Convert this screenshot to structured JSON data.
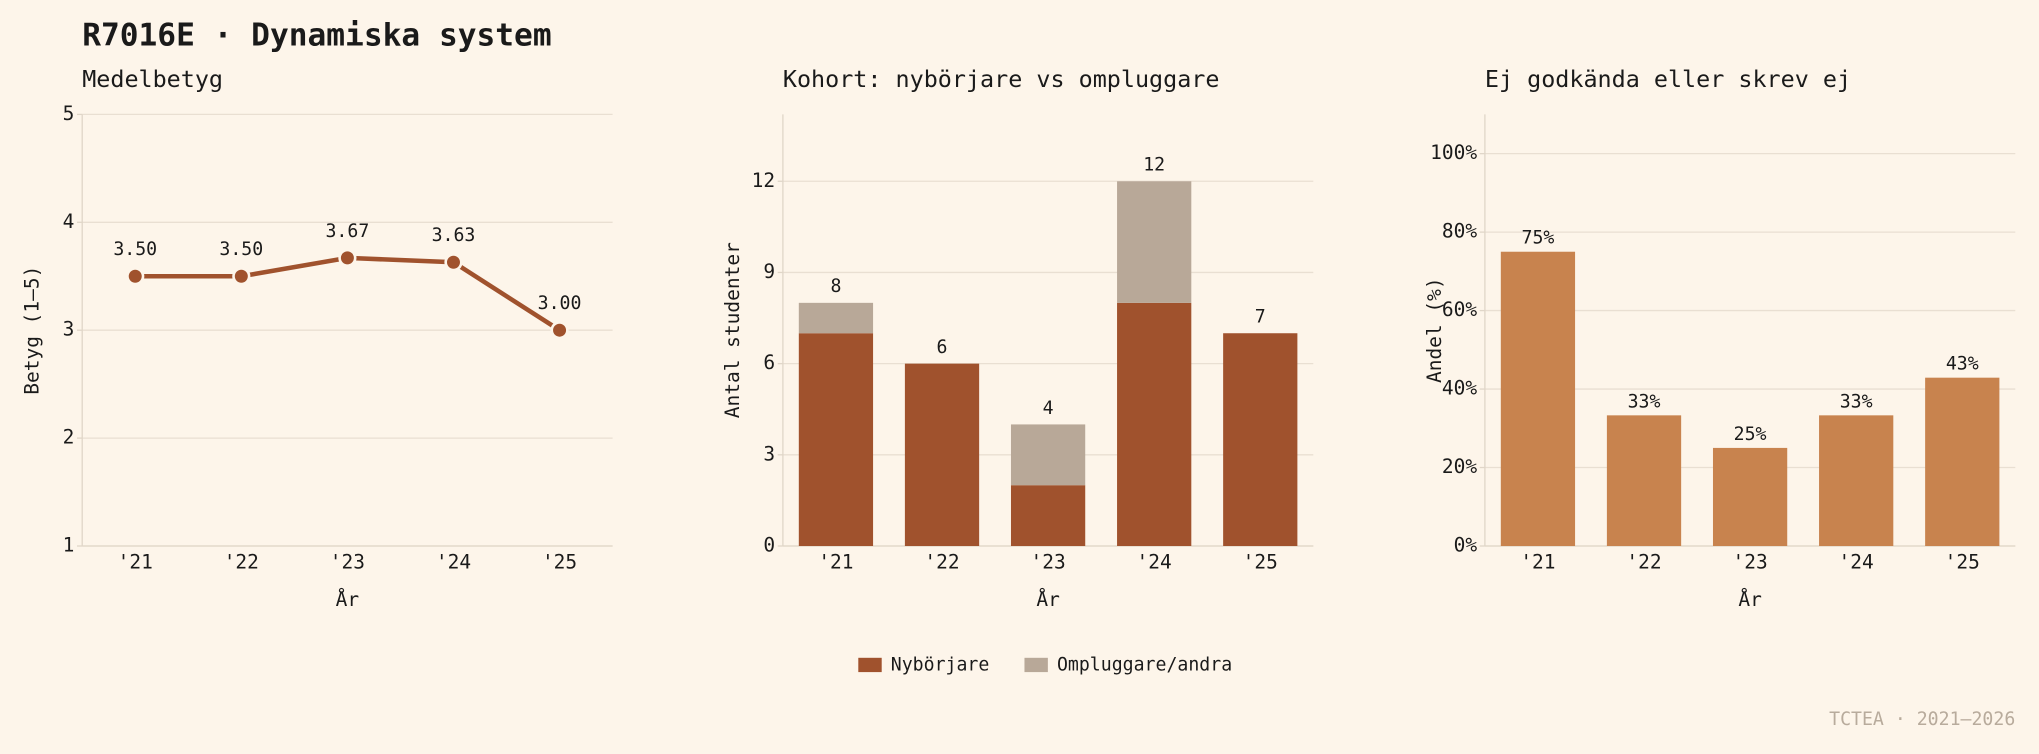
{
  "title": "R7016E · Dynamiska system",
  "footer": "TCTEA · 2021–2026",
  "chart_data": [
    {
      "type": "line",
      "title": "Medelbetyg",
      "xlabel": "År",
      "ylabel": "Betyg (1–5)",
      "categories": [
        "'21",
        "'22",
        "'23",
        "'24",
        "'25"
      ],
      "values": [
        3.5,
        3.5,
        3.67,
        3.63,
        3.0
      ],
      "value_labels": [
        "3.50",
        "3.50",
        "3.67",
        "3.63",
        "3.00"
      ],
      "color": "#a0522d",
      "ylim": [
        1,
        5
      ],
      "yticks": [
        1,
        2,
        3,
        4,
        5
      ],
      "grid": true
    },
    {
      "type": "stacked-bar",
      "title": "Kohort: nybörjare vs ompluggare",
      "xlabel": "År",
      "ylabel": "Antal studenter",
      "categories": [
        "'21",
        "'22",
        "'23",
        "'24",
        "'25"
      ],
      "series": [
        {
          "name": "Nybörjare",
          "color": "#a0522d",
          "values": [
            7,
            6,
            2,
            8,
            7
          ]
        },
        {
          "name": "Ompluggare/andra",
          "color": "#b8a898",
          "values": [
            1,
            0,
            2,
            4,
            0
          ]
        }
      ],
      "totals": [
        8,
        6,
        4,
        12,
        7
      ],
      "ylim": [
        0,
        14.2
      ],
      "yticks": [
        0,
        3,
        6,
        9,
        12
      ],
      "grid": true,
      "legend": "bottom"
    },
    {
      "type": "bar",
      "title": "Ej godkända eller skrev ej",
      "xlabel": "År",
      "ylabel": "Andel (%)",
      "categories": [
        "'21",
        "'22",
        "'23",
        "'24",
        "'25"
      ],
      "values": [
        75,
        33.3,
        25,
        33.3,
        42.9
      ],
      "value_labels": [
        "75%",
        "33%",
        "25%",
        "33%",
        "43%"
      ],
      "color": "#c8834e",
      "ylim": [
        0,
        110
      ],
      "yticks": [
        {
          "value": 0,
          "label": "0%"
        },
        {
          "value": 20,
          "label": "20%"
        },
        {
          "value": 40,
          "label": "40%"
        },
        {
          "value": 60,
          "label": "60%"
        },
        {
          "value": 80,
          "label": "80%"
        },
        {
          "value": 100,
          "label": "100%"
        }
      ],
      "grid": true
    }
  ]
}
